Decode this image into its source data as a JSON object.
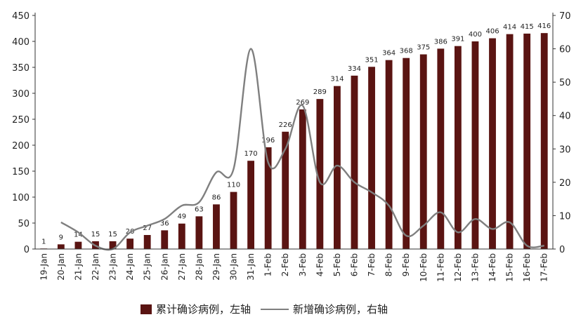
{
  "chart_data": {
    "type": "bar",
    "categories": [
      "19-Jan",
      "20-Jan",
      "21-Jan",
      "22-Jan",
      "23-Jan",
      "24-Jan",
      "25-Jan",
      "26-Jan",
      "27-Jan",
      "28-Jan",
      "29-Jan",
      "30-Jan",
      "31-Jan",
      "1-Feb",
      "2-Feb",
      "3-Feb",
      "4-Feb",
      "5-Feb",
      "6-Feb",
      "7-Feb",
      "8-Feb",
      "9-Feb",
      "10-Feb",
      "11-Feb",
      "12-Feb",
      "13-Feb",
      "14-Feb",
      "15-Feb",
      "16-Feb",
      "17-Feb"
    ],
    "series": [
      {
        "name": "累计确诊病例，左轴",
        "type": "bar",
        "axis": "left",
        "color": "#5a1412",
        "values": [
          1,
          9,
          14,
          15,
          15,
          20,
          27,
          36,
          49,
          63,
          86,
          110,
          170,
          196,
          226,
          269,
          289,
          314,
          334,
          351,
          364,
          368,
          375,
          386,
          391,
          400,
          406,
          414,
          415,
          416
        ]
      },
      {
        "name": "新增确诊病例，右轴",
        "type": "line",
        "axis": "right",
        "color": "#7f7f7f",
        "values": [
          null,
          8,
          5,
          1,
          0,
          5,
          7,
          9,
          13,
          14,
          23,
          24,
          60,
          26,
          30,
          43,
          20,
          25,
          20,
          17,
          13,
          4,
          7,
          11,
          5,
          9,
          6,
          8,
          1,
          1
        ]
      }
    ],
    "left_axis": {
      "ylim": [
        0,
        450
      ],
      "ticks": [
        0,
        50,
        100,
        150,
        200,
        250,
        300,
        350,
        400,
        450
      ]
    },
    "right_axis": {
      "ylim": [
        0,
        70
      ],
      "ticks": [
        0,
        10,
        20,
        30,
        40,
        50,
        60,
        70
      ]
    },
    "grid": false,
    "legend_position": "bottom"
  }
}
